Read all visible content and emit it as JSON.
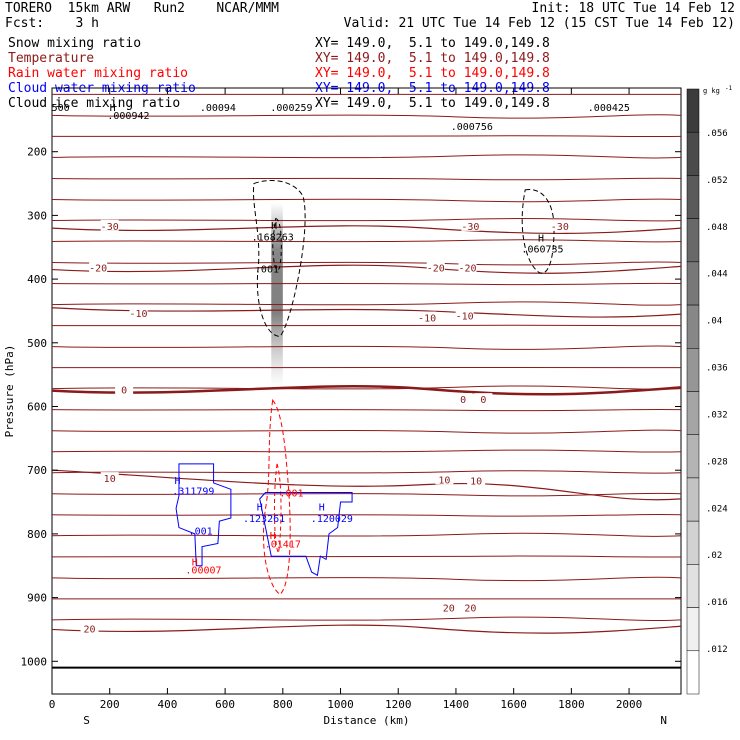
{
  "header": {
    "model": "TORERO  15km ARW   Run2    NCAR/MMM",
    "forecast": "Fcst:    3 h",
    "init": "Init: 18 UTC Tue 14 Feb 12",
    "valid": "Valid: 21 UTC Tue 14 Feb 12 (15 CST Tue 14 Feb 12)"
  },
  "fields": [
    {
      "name": "Snow mixing ratio",
      "color": "#000000",
      "xy": "XY= 149.0,  5.1 to 149.0,149.8"
    },
    {
      "name": "Temperature",
      "color": "#8b1a1a",
      "xy": "XY= 149.0,  5.1 to 149.0,149.8"
    },
    {
      "name": "Rain water mixing ratio",
      "color": "#ff0000",
      "xy": "XY= 149.0,  5.1 to 149.0,149.8"
    },
    {
      "name": "Cloud water mixing ratio",
      "color": "#0000ff",
      "xy": "XY= 149.0,  5.1 to 149.0,149.8"
    },
    {
      "name": "Cloud ice mixing ratio",
      "color": "#000000",
      "xy": "XY= 149.0,  5.1 to 149.0,149.8"
    }
  ],
  "colorbar": {
    "unit": "g kg",
    "unit_exp": "-1",
    "ticks": [
      ".012",
      ".016",
      ".02",
      ".024",
      ".028",
      ".032",
      ".036",
      ".04",
      ".044",
      ".048",
      ".052",
      ".056"
    ],
    "top_color": "#000000",
    "bottom_color": "#ffffff"
  },
  "chart_data": {
    "type": "contour-cross-section",
    "xlabel": "Distance (km)",
    "ylabel": "Pressure (hPa)",
    "xlim": [
      0,
      2180
    ],
    "ylim": [
      1050,
      100
    ],
    "x_ticks": [
      "0",
      "200",
      "400",
      "600",
      "800",
      "1000",
      "1200",
      "1400",
      "1600",
      "1800",
      "2000"
    ],
    "y_ticks": [
      "200",
      "300",
      "400",
      "500",
      "600",
      "700",
      "800",
      "900",
      "1000"
    ],
    "x_end_labels": {
      "left": "S",
      "right": "N"
    },
    "temperature_contours": [
      {
        "label": "-30",
        "p_left": 320,
        "p_right": 320
      },
      {
        "label": "-20",
        "p_left": 385,
        "p_right": 380
      },
      {
        "label": "-10",
        "p_left": 445,
        "p_right": 455
      },
      {
        "label": "0",
        "p_left": 575,
        "p_right": 570
      },
      {
        "label": "10",
        "p_left": 700,
        "p_right": 745
      },
      {
        "label": "20",
        "p_left": 950,
        "p_right": 945
      }
    ],
    "temperature_labels": [
      {
        "text": "-30",
        "x": 200,
        "p": 318
      },
      {
        "text": "-30",
        "x": 1450,
        "p": 318
      },
      {
        "text": "-30",
        "x": 1760,
        "p": 318
      },
      {
        "text": "-20",
        "x": 160,
        "p": 383
      },
      {
        "text": "-20",
        "x": 1330,
        "p": 383
      },
      {
        "text": "-20",
        "x": 1440,
        "p": 383
      },
      {
        "text": "-10",
        "x": 300,
        "p": 455
      },
      {
        "text": "-10",
        "x": 1300,
        "p": 462
      },
      {
        "text": "-10",
        "x": 1430,
        "p": 459
      },
      {
        "text": "0",
        "x": 250,
        "p": 575
      },
      {
        "text": "0",
        "x": 1425,
        "p": 590
      },
      {
        "text": "0",
        "x": 1495,
        "p": 590
      },
      {
        "text": "10",
        "x": 200,
        "p": 714
      },
      {
        "text": "10",
        "x": 1360,
        "p": 716
      },
      {
        "text": "10",
        "x": 1470,
        "p": 718
      },
      {
        "text": "20",
        "x": 130,
        "p": 950
      },
      {
        "text": "20",
        "x": 1375,
        "p": 917
      },
      {
        "text": "20",
        "x": 1450,
        "p": 917
      }
    ],
    "extrema_labels": [
      {
        "text": "H",
        "color": "#000000",
        "x": 770,
        "p": 315
      },
      {
        "text": ".168263",
        "color": "#000000",
        "x": 765,
        "p": 333
      },
      {
        "text": ".001",
        "color": "#000000",
        "x": 745,
        "p": 383
      },
      {
        "text": "H",
        "color": "#000000",
        "x": 1695,
        "p": 335
      },
      {
        "text": ".060735",
        "color": "#000000",
        "x": 1700,
        "p": 352
      },
      {
        "text": ".000756",
        "color": "#000000",
        "x": 1455,
        "p": 160
      },
      {
        "text": ".000425",
        "color": "#000000",
        "x": 1930,
        "p": 130
      },
      {
        "text": ".000259",
        "color": "#000000",
        "x": 830,
        "p": 130
      },
      {
        "text": ".00094",
        "color": "#000000",
        "x": 575,
        "p": 130
      },
      {
        "text": "H",
        "color": "#0000ff",
        "x": 435,
        "p": 715
      },
      {
        "text": ".311799",
        "color": "#0000ff",
        "x": 490,
        "p": 732
      },
      {
        "text": ".001",
        "color": "#0000ff",
        "x": 515,
        "p": 795
      },
      {
        "text": "H",
        "color": "#0000ff",
        "x": 720,
        "p": 757
      },
      {
        "text": ".123261",
        "color": "#0000ff",
        "x": 735,
        "p": 775
      },
      {
        "text": "H",
        "color": "#0000ff",
        "x": 935,
        "p": 757
      },
      {
        "text": ".120029",
        "color": "#0000ff",
        "x": 970,
        "p": 775
      },
      {
        "text": ".001",
        "color": "#ff0000",
        "x": 830,
        "p": 735
      },
      {
        "text": "H",
        "color": "#ff0000",
        "x": 765,
        "p": 802
      },
      {
        "text": ".01417",
        "color": "#ff0000",
        "x": 800,
        "p": 815
      },
      {
        "text": "H",
        "color": "#ff0000",
        "x": 495,
        "p": 843
      },
      {
        "text": ".00007",
        "color": "#ff0000",
        "x": 525,
        "p": 856
      }
    ],
    "overlapped_top_labels": [
      {
        "text": "500",
        "color": "#000000",
        "x": 30,
        "p": 130
      },
      {
        "text": "H",
        "color": "#000000",
        "x": 210,
        "p": 130
      },
      {
        "text": ".000942",
        "color": "#000000",
        "x": 265,
        "p": 142
      }
    ]
  }
}
